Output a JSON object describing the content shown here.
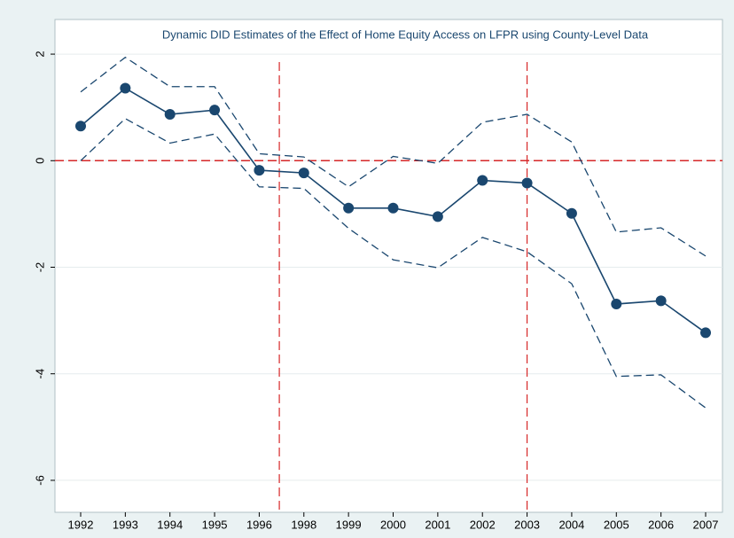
{
  "chart_data": {
    "type": "line",
    "title": "Dynamic DID Estimates of the Effect of Home Equity Access on LFPR using County-Level Data",
    "categories": [
      "1992",
      "1993",
      "1994",
      "1995",
      "1996",
      "1998",
      "1999",
      "2000",
      "2001",
      "2002",
      "2003",
      "2004",
      "2005",
      "2006",
      "2007"
    ],
    "series": [
      {
        "color": "#1a476f",
        "style": "dashed",
        "marker": false,
        "values": [
          1.29,
          1.94,
          1.39,
          1.39,
          0.13,
          0.07,
          -0.49,
          0.08,
          -0.05,
          0.72,
          0.87,
          0.35,
          -1.34,
          -1.26,
          -1.79
        ]
      },
      {
        "color": "#1a476f",
        "style": "solid",
        "marker": true,
        "values": [
          0.65,
          1.36,
          0.87,
          0.95,
          -0.18,
          -0.23,
          -0.89,
          -0.89,
          -1.05,
          -0.37,
          -0.42,
          -0.99,
          -2.69,
          -2.63,
          -3.23
        ]
      },
      {
        "color": "#1a476f",
        "style": "dashed",
        "marker": false,
        "values": [
          0.0,
          0.79,
          0.33,
          0.5,
          -0.49,
          -0.52,
          -1.27,
          -1.86,
          -2.01,
          -1.44,
          -1.71,
          -2.31,
          -4.05,
          -4.02,
          -4.64
        ]
      }
    ],
    "ylim": [
      -6.6,
      2.65
    ],
    "yticks": [
      -6,
      -4,
      -2,
      0,
      2
    ],
    "grid": true,
    "reference_hline": 0,
    "reference_vlines": [
      4.45,
      10
    ],
    "reference_color": "#d62728"
  }
}
